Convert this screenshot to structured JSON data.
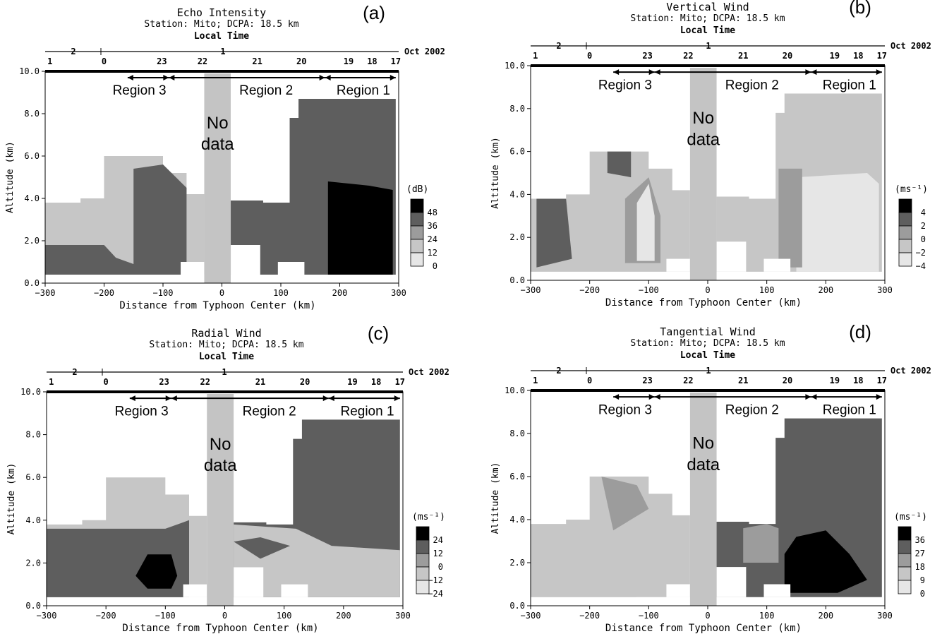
{
  "figure": {
    "colors": {
      "bg": "#ffffff",
      "nodata": "#c4c4c4",
      "l0": "#e6e6e6",
      "l1": "#c6c6c6",
      "l2": "#9c9c9c",
      "l3": "#5e5e5e",
      "l4": "#000000"
    },
    "shared": {
      "station_line": "Station: Mito; DCPA:   18.5 km",
      "local_time": "Local Time",
      "month_label": "Oct 2002",
      "xlabel": "Distance from Typhoon Center (km)",
      "ylabel": "Altitude (km)",
      "no_data": [
        "No",
        "data"
      ],
      "regions": [
        "Region 3",
        "Region 2",
        "Region 1"
      ],
      "x_ticks": [
        "−300",
        "−200",
        "−100",
        "0",
        "100",
        "200",
        "300"
      ],
      "y_ticks": [
        "0.0",
        "2.0",
        "4.0",
        "6.0",
        "8.0",
        "10.0"
      ],
      "day_labels": [
        "2",
        "1"
      ],
      "hour_labels": [
        "1",
        "0",
        "23",
        "22",
        "21",
        "20",
        "19",
        "18",
        "17"
      ]
    }
  },
  "chart_data": [
    {
      "id": "a",
      "panel_label": "(a)",
      "type": "heatmap",
      "title": "Echo Intensity",
      "subtitle": "Station: Mito; DCPA:   18.5 km",
      "xlabel": "Distance from Typhoon Center (km)",
      "ylabel": "Altitude (km)",
      "xlim": [
        -300,
        300
      ],
      "ylim": [
        0,
        10
      ],
      "legend_title": "(dB)",
      "legend_levels": [
        "48",
        "36",
        "24",
        "12",
        "0"
      ],
      "x_distance_km": [
        -300,
        -200,
        -100,
        0,
        100,
        200,
        300
      ],
      "local_time_hours": [
        "1",
        "0",
        "23",
        "22",
        "21",
        "20",
        "19",
        "18",
        "17"
      ],
      "region_spans_km": {
        "Region 3": [
          -160,
          -90
        ],
        "Region 2": [
          -90,
          175
        ],
        "Region 1": [
          175,
          295
        ]
      },
      "no_data_km": [
        -30,
        15
      ]
    },
    {
      "id": "b",
      "panel_label": "(b)",
      "type": "heatmap",
      "title": "Vertical Wind",
      "subtitle": "Station: Mito; DCPA:   18.5 km",
      "xlabel": "Distance from Typhoon Center (km)",
      "ylabel": "Altitude (km)",
      "xlim": [
        -300,
        300
      ],
      "ylim": [
        0,
        10
      ],
      "legend_title": "(ms⁻¹)",
      "legend_levels": [
        "4",
        "2",
        "0",
        "−2",
        "−4"
      ],
      "x_distance_km": [
        -300,
        -200,
        -100,
        0,
        100,
        200,
        300
      ],
      "local_time_hours": [
        "1",
        "0",
        "23",
        "22",
        "21",
        "20",
        "19",
        "18",
        "17"
      ],
      "region_spans_km": {
        "Region 3": [
          -160,
          -90
        ],
        "Region 2": [
          -90,
          175
        ],
        "Region 1": [
          175,
          295
        ]
      },
      "no_data_km": [
        -30,
        15
      ]
    },
    {
      "id": "c",
      "panel_label": "(c)",
      "type": "heatmap",
      "title": "Radial Wind",
      "subtitle": "Station: Mito; DCPA:   18.5 km",
      "xlabel": "Distance from Typhoon Center (km)",
      "ylabel": "Altitude (km)",
      "xlim": [
        -300,
        300
      ],
      "ylim": [
        0,
        10
      ],
      "legend_title": "(ms⁻¹)",
      "legend_levels": [
        "24",
        "12",
        "0",
        "−12",
        "−24"
      ],
      "x_distance_km": [
        -300,
        -200,
        -100,
        0,
        100,
        200,
        300
      ],
      "local_time_hours": [
        "1",
        "0",
        "23",
        "22",
        "21",
        "20",
        "19",
        "18",
        "17"
      ],
      "region_spans_km": {
        "Region 3": [
          -160,
          -90
        ],
        "Region 2": [
          -90,
          175
        ],
        "Region 1": [
          175,
          295
        ]
      },
      "no_data_km": [
        -30,
        15
      ]
    },
    {
      "id": "d",
      "panel_label": "(d)",
      "type": "heatmap",
      "title": "Tangential Wind",
      "subtitle": "Station: Mito; DCPA:   18.5 km",
      "xlabel": "Distance from Typhoon Center (km)",
      "ylabel": "Altitude (km)",
      "xlim": [
        -300,
        300
      ],
      "ylim": [
        0,
        10
      ],
      "legend_title": "(ms⁻¹)",
      "legend_levels": [
        "36",
        "27",
        "18",
        "9",
        "0"
      ],
      "x_distance_km": [
        -300,
        -200,
        -100,
        0,
        100,
        200,
        300
      ],
      "local_time_hours": [
        "1",
        "0",
        "23",
        "22",
        "21",
        "20",
        "19",
        "18",
        "17"
      ],
      "region_spans_km": {
        "Region 3": [
          -160,
          -90
        ],
        "Region 2": [
          -90,
          175
        ],
        "Region 1": [
          175,
          295
        ]
      },
      "no_data_km": [
        -30,
        15
      ]
    }
  ]
}
